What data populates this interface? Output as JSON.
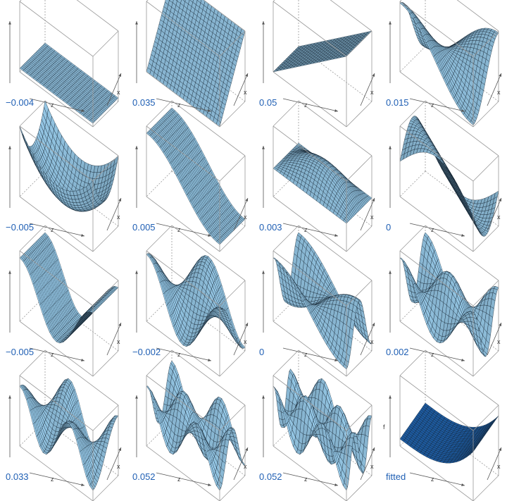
{
  "chart_data": {
    "type": "surface-grid",
    "layout": {
      "rows": 4,
      "cols": 4
    },
    "axis_labels": {
      "x": "x",
      "z": "z",
      "f": "f"
    },
    "colors": {
      "surface": "#8fbfdc",
      "surface_fitted": "#1f5fa8",
      "mesh": "#0b1a26",
      "box": "#9a9a9a",
      "label": "#1f5fb4"
    },
    "panels": [
      {
        "label": "−0.004",
        "shape": "flat-low",
        "coefficient": -0.004
      },
      {
        "label": "0.035",
        "shape": "plane-z",
        "coefficient": 0.035
      },
      {
        "label": "0.05",
        "shape": "plane-x",
        "coefficient": 0.05
      },
      {
        "label": "0.015",
        "shape": "saddle",
        "coefficient": 0.015
      },
      {
        "label": "−0.005",
        "shape": "bowl",
        "coefficient": -0.005
      },
      {
        "label": "0.005",
        "shape": "wave-x",
        "coefficient": 0.005
      },
      {
        "label": "0.003",
        "shape": "dome",
        "coefficient": 0.003
      },
      {
        "label": "0",
        "shape": "wave-diag",
        "coefficient": 0
      },
      {
        "label": "−0.005",
        "shape": "wave2-x",
        "coefficient": -0.005
      },
      {
        "label": "−0.002",
        "shape": "bump",
        "coefficient": -0.002
      },
      {
        "label": "0",
        "shape": "wave2-z",
        "coefficient": 0
      },
      {
        "label": "0.002",
        "shape": "wave2-xz",
        "coefficient": 0.002
      },
      {
        "label": "0.033",
        "shape": "wave3-x",
        "coefficient": 0.033
      },
      {
        "label": "0.052",
        "shape": "wave3-z",
        "coefficient": 0.052
      },
      {
        "label": "0.052",
        "shape": "wave3-xz",
        "coefficient": 0.052
      },
      {
        "label": "fitted",
        "shape": "fitted",
        "coefficient": null
      }
    ]
  }
}
